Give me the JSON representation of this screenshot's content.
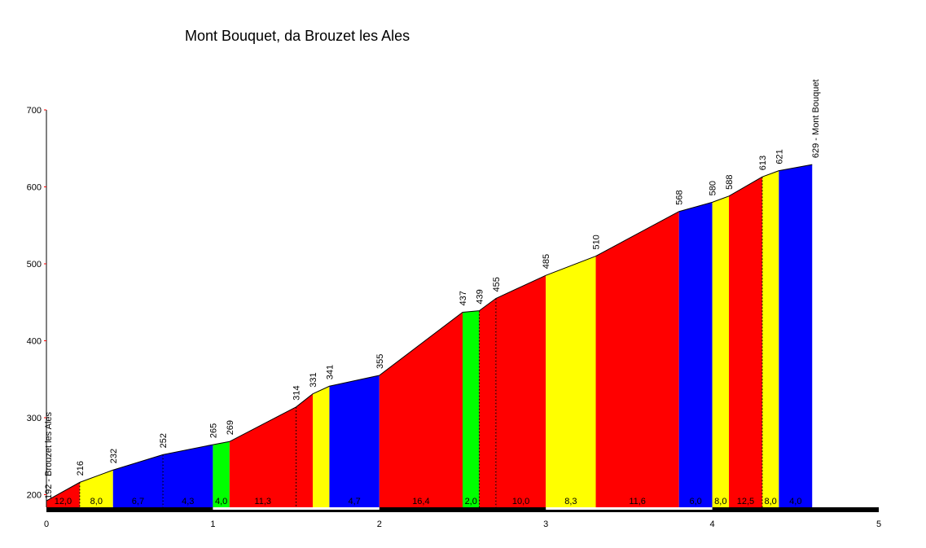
{
  "chart_data": {
    "type": "area",
    "title": "Mont Bouquet, da Brouzet les Ales",
    "xlabel": "",
    "ylabel": "",
    "xlim": [
      0,
      5
    ],
    "ylim": [
      180,
      700
    ],
    "x_ticks": [
      "0",
      "1",
      "2",
      "3",
      "4",
      "5"
    ],
    "y_ticks": [
      "200",
      "300",
      "400",
      "500",
      "600",
      "700"
    ],
    "grid": false,
    "colors": {
      "red": "#ff0000",
      "yellow": "#ffff00",
      "blue": "#0000ff",
      "green": "#00ff00",
      "axis_tick": "#ff0000",
      "baseline_dark": "#000000",
      "baseline_light": "#ffffff"
    },
    "points": [
      {
        "x": 0.0,
        "y": 192,
        "label": "192 - Brouzet les Ales"
      },
      {
        "x": 0.2,
        "y": 216,
        "label": "216"
      },
      {
        "x": 0.4,
        "y": 232,
        "label": "232"
      },
      {
        "x": 0.7,
        "y": 252,
        "label": "252"
      },
      {
        "x": 1.0,
        "y": 265,
        "label": "265"
      },
      {
        "x": 1.1,
        "y": 269,
        "label": "269"
      },
      {
        "x": 1.5,
        "y": 314,
        "label": "314"
      },
      {
        "x": 1.6,
        "y": 331,
        "label": "331"
      },
      {
        "x": 1.7,
        "y": 341,
        "label": "341"
      },
      {
        "x": 2.0,
        "y": 355,
        "label": "355"
      },
      {
        "x": 2.5,
        "y": 437,
        "label": "437"
      },
      {
        "x": 2.6,
        "y": 439,
        "label": "439"
      },
      {
        "x": 2.7,
        "y": 455,
        "label": "455"
      },
      {
        "x": 3.0,
        "y": 485,
        "label": "485"
      },
      {
        "x": 3.3,
        "y": 510,
        "label": "510"
      },
      {
        "x": 3.8,
        "y": 568,
        "label": "568"
      },
      {
        "x": 4.0,
        "y": 580,
        "label": "580"
      },
      {
        "x": 4.1,
        "y": 588,
        "label": "588"
      },
      {
        "x": 4.3,
        "y": 613,
        "label": "613"
      },
      {
        "x": 4.4,
        "y": 621,
        "label": "621"
      },
      {
        "x": 4.6,
        "y": 629,
        "label": "629 - Mont Bouquet"
      }
    ],
    "segments": [
      {
        "from": 0.0,
        "to": 0.2,
        "color": "red",
        "gradient": "12,0",
        "divider": true
      },
      {
        "from": 0.2,
        "to": 0.4,
        "color": "yellow",
        "gradient": "8,0",
        "divider": false
      },
      {
        "from": 0.4,
        "to": 0.7,
        "color": "blue",
        "gradient": "6,7",
        "divider": true
      },
      {
        "from": 0.7,
        "to": 1.0,
        "color": "blue",
        "gradient": "4,3",
        "divider": false
      },
      {
        "from": 1.0,
        "to": 1.1,
        "color": "green",
        "gradient": "4,0",
        "divider": false
      },
      {
        "from": 1.1,
        "to": 1.5,
        "color": "red",
        "gradient": "11,3",
        "divider": true
      },
      {
        "from": 1.5,
        "to": 1.6,
        "color": "red",
        "gradient": "",
        "divider": false
      },
      {
        "from": 1.6,
        "to": 1.7,
        "color": "yellow",
        "gradient": "",
        "divider": false
      },
      {
        "from": 1.7,
        "to": 2.0,
        "color": "blue",
        "gradient": "4,7",
        "divider": false
      },
      {
        "from": 2.0,
        "to": 2.5,
        "color": "red",
        "gradient": "16,4",
        "divider": false
      },
      {
        "from": 2.5,
        "to": 2.6,
        "color": "green",
        "gradient": "2,0",
        "divider": true
      },
      {
        "from": 2.6,
        "to": 2.7,
        "color": "red",
        "gradient": "",
        "divider": true
      },
      {
        "from": 2.7,
        "to": 3.0,
        "color": "red",
        "gradient": "10,0",
        "divider": false
      },
      {
        "from": 3.0,
        "to": 3.3,
        "color": "yellow",
        "gradient": "8,3",
        "divider": false
      },
      {
        "from": 3.3,
        "to": 3.8,
        "color": "red",
        "gradient": "11,6",
        "divider": false
      },
      {
        "from": 3.8,
        "to": 4.0,
        "color": "blue",
        "gradient": "6,0",
        "divider": false
      },
      {
        "from": 4.0,
        "to": 4.1,
        "color": "yellow",
        "gradient": "8,0",
        "divider": false
      },
      {
        "from": 4.1,
        "to": 4.3,
        "color": "red",
        "gradient": "12,5",
        "divider": true
      },
      {
        "from": 4.3,
        "to": 4.4,
        "color": "yellow",
        "gradient": "8,0",
        "divider": false
      },
      {
        "from": 4.4,
        "to": 4.6,
        "color": "blue",
        "gradient": "4,0",
        "divider": false
      }
    ]
  }
}
